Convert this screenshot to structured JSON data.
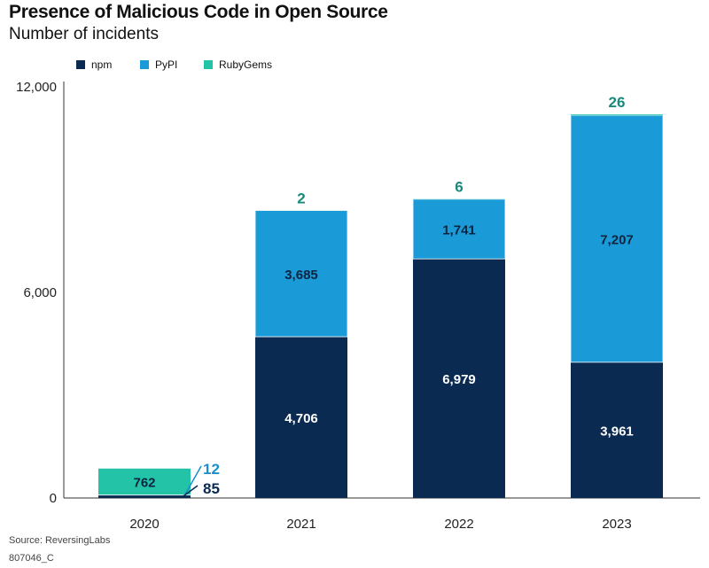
{
  "colors": {
    "npm": "#0a2a52",
    "PyPI": "#1a9bd7",
    "RubyGems": "#22c3a6",
    "total_label": "#178a7c",
    "pypi_callout": "#1a8fc9",
    "npm_callout": "#0a2a52"
  },
  "footer": {
    "source": "Source: ReversingLabs",
    "code": "807046_C"
  },
  "chart_data": {
    "type": "bar",
    "stacked": true,
    "title": "Presence of Malicious Code in Open Source",
    "subtitle": "Number of incidents",
    "xlabel": "",
    "ylabel": "",
    "ylim": [
      0,
      12000
    ],
    "yticks": [
      0,
      6000,
      12000
    ],
    "ytick_labels": [
      "0",
      "6,000",
      "12,000"
    ],
    "categories": [
      "2020",
      "2021",
      "2022",
      "2023"
    ],
    "legend_position": "top-left",
    "grid": false,
    "series": [
      {
        "name": "npm",
        "values": [
          85,
          4706,
          6979,
          3961
        ],
        "labels": [
          "85",
          "4,706",
          "6,979",
          "3,961"
        ]
      },
      {
        "name": "PyPI",
        "values": [
          12,
          3685,
          1741,
          7207
        ],
        "labels": [
          "12",
          "3,685",
          "1,741",
          "7,207"
        ]
      },
      {
        "name": "RubyGems",
        "values": [
          762,
          2,
          6,
          26
        ],
        "labels": [
          "762",
          "2",
          "6",
          "26"
        ]
      }
    ]
  }
}
